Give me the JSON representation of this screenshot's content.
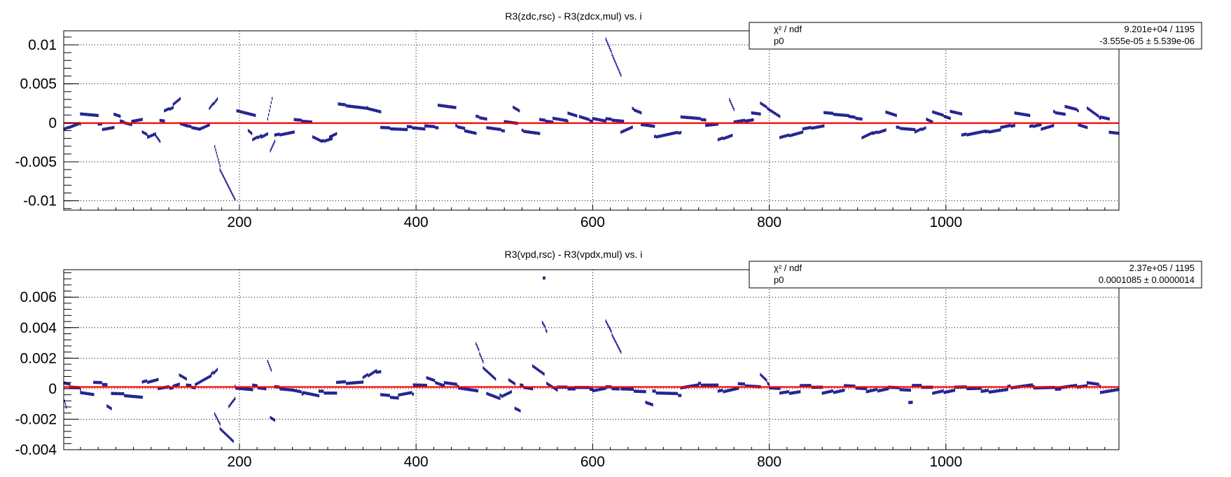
{
  "chart_data": [
    {
      "type": "scatter",
      "title": "R3(zdc,rsc) - R3(zdcx,mul) vs. i",
      "xlabel": "",
      "ylabel": "",
      "xlim": [
        1,
        1196
      ],
      "ylim": [
        -0.0112,
        0.0118
      ],
      "grid": true,
      "x_ticks": [
        200,
        400,
        600,
        800,
        1000
      ],
      "x_tick_labels": [
        "200",
        "400",
        "600",
        "800",
        "1000"
      ],
      "y_ticks": [
        0.01,
        0.005,
        0,
        -0.005,
        -0.01
      ],
      "y_tick_labels": [
        "0.01",
        "0.005",
        "0",
        "-0.005",
        "-0.01"
      ],
      "fit": {
        "name": "p0",
        "value": -3.555e-05
      },
      "stats_box": {
        "position": "top-right",
        "rows": [
          {
            "label": "χ² / ndf",
            "value": "9.201e+04 / 1195"
          },
          {
            "label": "p0",
            "value": "-3.555e-05 ± 5.539e-06"
          }
        ]
      },
      "point_color": "#1a1a8c",
      "fit_color": "#ff0000",
      "segments": [
        [
          1,
          6,
          -0.0008,
          -0.0006
        ],
        [
          7,
          20,
          -0.0006,
          -0.0001
        ],
        [
          20,
          40,
          0.0012,
          0.0009
        ],
        [
          40,
          44,
          -0.0002,
          -0.0002
        ],
        [
          45,
          58,
          -0.0008,
          -0.0006
        ],
        [
          58,
          65,
          0.0011,
          0.0008
        ],
        [
          65,
          78,
          0.0002,
          -0.0002
        ],
        [
          78,
          90,
          0.0002,
          0.0004
        ],
        [
          90,
          96,
          -0.0012,
          -0.0016
        ],
        [
          96,
          105,
          -0.0018,
          -0.0014
        ],
        [
          105,
          110,
          -0.0016,
          -0.0024
        ],
        [
          110,
          115,
          0.0003,
          0.0002
        ],
        [
          115,
          125,
          0.0015,
          0.002
        ],
        [
          125,
          133,
          0.0024,
          0.0031
        ],
        [
          133,
          140,
          -0.0001,
          -0.0004
        ],
        [
          140,
          155,
          -0.0004,
          -0.0008
        ],
        [
          155,
          166,
          -0.0008,
          -0.0003
        ],
        [
          166,
          175,
          0.0018,
          0.0031
        ],
        [
          172,
          178,
          -0.003,
          -0.0055
        ],
        [
          178,
          195,
          -0.006,
          -0.0099
        ],
        [
          197,
          218,
          0.0016,
          0.0009
        ],
        [
          210,
          214,
          -0.001,
          -0.0014
        ],
        [
          215,
          225,
          -0.0022,
          -0.0016
        ],
        [
          225,
          232,
          -0.0018,
          -0.0014
        ],
        [
          232,
          237,
          0.0005,
          0.0031
        ],
        [
          235,
          240,
          -0.0036,
          -0.0024
        ],
        [
          240,
          262,
          -0.0016,
          -0.0012
        ],
        [
          262,
          282,
          0.0004,
          0.0001
        ],
        [
          283,
          293,
          -0.0018,
          -0.0024
        ],
        [
          293,
          305,
          -0.0024,
          -0.002
        ],
        [
          302,
          310,
          -0.0018,
          -0.0014
        ],
        [
          312,
          345,
          0.0024,
          0.0018
        ],
        [
          345,
          360,
          0.0019,
          0.0014
        ],
        [
          360,
          390,
          -0.0006,
          -0.0009
        ],
        [
          390,
          410,
          -0.0005,
          -0.0008
        ],
        [
          410,
          425,
          -0.0004,
          -0.0006
        ],
        [
          425,
          445,
          0.0023,
          0.0019
        ],
        [
          445,
          455,
          -0.0004,
          -0.0007
        ],
        [
          455,
          468,
          -0.001,
          -0.0014
        ],
        [
          468,
          480,
          0.0008,
          0.0005
        ],
        [
          480,
          500,
          -0.0006,
          -0.001
        ],
        [
          500,
          515,
          0.0002,
          -0.0001
        ],
        [
          510,
          517,
          0.002,
          0.0015
        ],
        [
          520,
          540,
          -0.001,
          -0.0014
        ],
        [
          540,
          555,
          0.0004,
          0.0001
        ],
        [
          555,
          572,
          0.0006,
          0.0002
        ],
        [
          572,
          582,
          0.0013,
          0.0009
        ],
        [
          585,
          600,
          0.0008,
          0.0002
        ],
        [
          600,
          615,
          0.0006,
          0.0002
        ],
        [
          615,
          632,
          0.0107,
          0.0061
        ],
        [
          615,
          635,
          0.0005,
          0.0002
        ],
        [
          632,
          645,
          -0.0012,
          -0.0006
        ],
        [
          645,
          655,
          0.0018,
          0.0013
        ],
        [
          655,
          670,
          -0.0002,
          -0.0005
        ],
        [
          670,
          700,
          -0.0018,
          -0.0012
        ],
        [
          700,
          728,
          0.0008,
          0.0004
        ],
        [
          728,
          742,
          -0.0003,
          -0.0002
        ],
        [
          742,
          758,
          -0.0022,
          -0.0016
        ],
        [
          755,
          760,
          0.003,
          0.0017
        ],
        [
          760,
          782,
          0.0001,
          0.0004
        ],
        [
          780,
          790,
          0.0013,
          0.0011
        ],
        [
          790,
          812,
          0.0025,
          0.0008
        ],
        [
          812,
          838,
          -0.0019,
          -0.0012
        ],
        [
          838,
          862,
          -0.0008,
          -0.0004
        ],
        [
          862,
          890,
          0.0013,
          0.0009
        ],
        [
          890,
          905,
          0.0008,
          0.0005
        ],
        [
          905,
          917,
          -0.0019,
          -0.0013
        ],
        [
          917,
          932,
          -0.0014,
          -0.0009
        ],
        [
          932,
          944,
          0.0014,
          0.0009
        ],
        [
          944,
          965,
          -0.0006,
          -0.0009
        ],
        [
          965,
          977,
          -0.0012,
          -0.0006
        ],
        [
          978,
          985,
          0.0005,
          0.0001
        ],
        [
          985,
          1005,
          0.0014,
          0.0006
        ],
        [
          1005,
          1018,
          0.0015,
          0.0011
        ],
        [
          1018,
          1045,
          -0.0016,
          -0.0011
        ],
        [
          1045,
          1062,
          -0.0012,
          -0.0009
        ],
        [
          1062,
          1078,
          -0.0006,
          -0.0003
        ],
        [
          1078,
          1095,
          0.0013,
          0.0009
        ],
        [
          1095,
          1108,
          -0.0005,
          -0.0002
        ],
        [
          1108,
          1122,
          -0.0008,
          -0.0004
        ],
        [
          1122,
          1135,
          0.0014,
          0.0011
        ],
        [
          1135,
          1150,
          0.0021,
          0.0016
        ],
        [
          1150,
          1160,
          -0.0002,
          -0.0006
        ],
        [
          1160,
          1175,
          0.0019,
          0.0006
        ],
        [
          1175,
          1185,
          0.0008,
          0.0005
        ],
        [
          1185,
          1196,
          -0.0012,
          -0.0014
        ]
      ]
    },
    {
      "type": "scatter",
      "title": "R3(vpd,rsc) - R3(vpdx,mul) vs. i",
      "xlabel": "",
      "ylabel": "",
      "xlim": [
        1,
        1196
      ],
      "ylim": [
        -0.004,
        0.0078
      ],
      "grid": true,
      "x_ticks": [
        200,
        400,
        600,
        800,
        1000
      ],
      "x_tick_labels": [
        "200",
        "400",
        "600",
        "800",
        "1000"
      ],
      "y_ticks": [
        0.006,
        0.004,
        0.002,
        0,
        -0.002,
        -0.004
      ],
      "y_tick_labels": [
        "0.006",
        "0.004",
        "0.002",
        "0",
        "-0.002",
        "-0.004"
      ],
      "fit": {
        "name": "p0",
        "value": 0.0001085
      },
      "stats_box": {
        "position": "top-right",
        "rows": [
          {
            "label": "χ² / ndf",
            "value": "2.37e+05 / 1195"
          },
          {
            "label": "p0",
            "value": "0.0001085 ± 0.0000014"
          }
        ]
      },
      "point_color": "#1a1a8c",
      "fit_color": "#ff0000",
      "segments": [
        [
          1,
          8,
          0.0004,
          0.0003
        ],
        [
          2,
          4,
          -0.0008,
          -0.0012
        ],
        [
          8,
          20,
          0.0001,
          0.0
        ],
        [
          20,
          35,
          -0.0002,
          -0.0004
        ],
        [
          35,
          50,
          0.0004,
          0.0003
        ],
        [
          50,
          55,
          -0.0011,
          -0.0013
        ],
        [
          55,
          70,
          -0.0003,
          -0.0004
        ],
        [
          70,
          90,
          -0.0004,
          -0.0006
        ],
        [
          90,
          108,
          0.0004,
          0.0006
        ],
        [
          108,
          125,
          0.0,
          0.0001
        ],
        [
          125,
          132,
          0.0002,
          0.0003
        ],
        [
          132,
          140,
          0.0009,
          0.0006
        ],
        [
          140,
          150,
          0.0002,
          0.0001
        ],
        [
          150,
          168,
          0.0003,
          0.0008
        ],
        [
          168,
          175,
          0.0009,
          0.0013
        ],
        [
          172,
          178,
          -0.0016,
          -0.0023
        ],
        [
          178,
          193,
          -0.0026,
          -0.0035
        ],
        [
          188,
          195,
          -0.0012,
          -0.0007
        ],
        [
          195,
          215,
          0.0001,
          -0.0001
        ],
        [
          215,
          230,
          0.0002,
          0.0
        ],
        [
          232,
          236,
          0.0018,
          0.0012
        ],
        [
          235,
          240,
          -0.0019,
          -0.0021
        ],
        [
          240,
          260,
          0.0001,
          -0.0001
        ],
        [
          260,
          272,
          -0.0001,
          -0.0003
        ],
        [
          272,
          290,
          -0.0002,
          -0.0005
        ],
        [
          290,
          310,
          -0.0002,
          -0.0003
        ],
        [
          310,
          340,
          0.0004,
          0.0004
        ],
        [
          340,
          355,
          0.0007,
          0.0012
        ],
        [
          355,
          360,
          0.0011,
          0.0011
        ],
        [
          360,
          380,
          -0.0004,
          -0.0006
        ],
        [
          380,
          397,
          -0.0004,
          -0.0003
        ],
        [
          397,
          412,
          0.0003,
          0.0002
        ],
        [
          412,
          432,
          0.0007,
          0.0002
        ],
        [
          432,
          448,
          0.0004,
          0.0002
        ],
        [
          448,
          470,
          0.0001,
          -0.0002
        ],
        [
          468,
          476,
          0.0029,
          0.0018
        ],
        [
          476,
          490,
          0.0014,
          0.0006
        ],
        [
          480,
          495,
          -0.0003,
          -0.0007
        ],
        [
          495,
          508,
          -0.0005,
          -0.0002
        ],
        [
          505,
          512,
          0.0006,
          0.0003
        ],
        [
          512,
          518,
          -0.0013,
          -0.0015
        ],
        [
          518,
          532,
          0.0002,
          0.0
        ],
        [
          532,
          545,
          0.0015,
          0.0009
        ],
        [
          543,
          548,
          0.0043,
          0.0038
        ],
        [
          544,
          546,
          0.0072,
          0.0072
        ],
        [
          548,
          560,
          0.0004,
          -0.0001
        ],
        [
          560,
          580,
          0.0001,
          0.0
        ],
        [
          580,
          600,
          0.0001,
          0.0
        ],
        [
          600,
          615,
          -0.0001,
          0.0
        ],
        [
          615,
          632,
          0.0044,
          0.0024
        ],
        [
          615,
          630,
          0.0001,
          0.0
        ],
        [
          632,
          660,
          0.0,
          -0.0002
        ],
        [
          660,
          668,
          -0.0009,
          -0.0011
        ],
        [
          668,
          700,
          -0.0002,
          -0.0004
        ],
        [
          700,
          720,
          0.0001,
          0.0002
        ],
        [
          720,
          742,
          0.0003,
          0.0002
        ],
        [
          742,
          765,
          -0.0002,
          0.0
        ],
        [
          765,
          790,
          0.0003,
          0.0001
        ],
        [
          790,
          800,
          0.0009,
          0.0003
        ],
        [
          800,
          812,
          0.0001,
          0.0
        ],
        [
          812,
          835,
          -0.0003,
          -0.0002
        ],
        [
          835,
          860,
          0.0002,
          0.0001
        ],
        [
          860,
          885,
          -0.0003,
          -0.0001
        ],
        [
          885,
          910,
          0.0002,
          0.0
        ],
        [
          910,
          935,
          -0.0002,
          0.0
        ],
        [
          935,
          960,
          0.0001,
          -0.0001
        ],
        [
          958,
          962,
          -0.0009,
          -0.0009
        ],
        [
          962,
          985,
          0.0002,
          0.0001
        ],
        [
          985,
          1010,
          -0.0003,
          -0.0001
        ],
        [
          1010,
          1040,
          0.0001,
          0.0
        ],
        [
          1040,
          1070,
          -0.0002,
          -0.0001
        ],
        [
          1070,
          1100,
          0.0001,
          0.0002
        ],
        [
          1100,
          1130,
          0.0001,
          0.0
        ],
        [
          1130,
          1160,
          0.0001,
          0.0002
        ],
        [
          1160,
          1175,
          0.0004,
          0.0002
        ],
        [
          1175,
          1196,
          -0.0002,
          -0.0001
        ]
      ]
    }
  ]
}
